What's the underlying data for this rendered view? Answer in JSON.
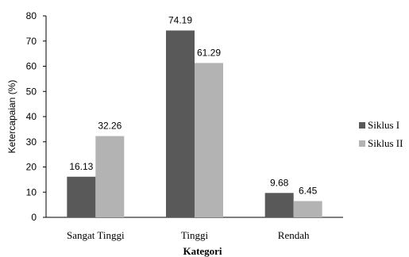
{
  "chart_data": {
    "type": "bar",
    "categories": [
      "Sangat Tinggi",
      "Tinggi",
      "Rendah"
    ],
    "series": [
      {
        "name": "Siklus I",
        "values": [
          16.13,
          74.19,
          9.68
        ],
        "color": "#595959"
      },
      {
        "name": "Siklus II",
        "values": [
          32.26,
          61.29,
          6.45
        ],
        "color": "#b3b3b3"
      }
    ],
    "data_labels": [
      [
        "16.13",
        "74.19",
        "9.68"
      ],
      [
        "32.26",
        "61.29",
        "6.45"
      ]
    ],
    "ylim": [
      0,
      80
    ],
    "yticks": [
      "0",
      "10",
      "20",
      "30",
      "40",
      "50",
      "60",
      "70",
      "80"
    ],
    "xlabel": "Kategori",
    "ylabel": "Ketercapaian (%)",
    "grid": false,
    "legend_position": "right"
  }
}
